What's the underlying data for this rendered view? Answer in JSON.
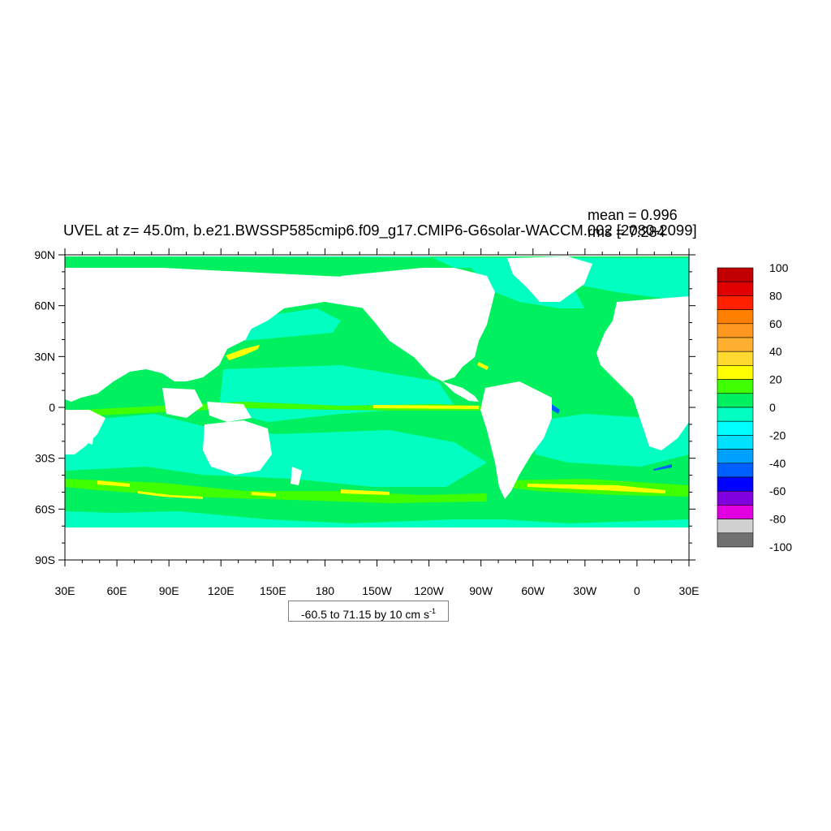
{
  "title": "UVEL at z=  45.0m, b.e21.BWSSP585cmip6.f09_g17.CMIP6-G6solar-WACCM.002 [2080-2099]",
  "stats": {
    "mean": "mean = 0.996",
    "rms": "rms = 7.284"
  },
  "contour_info": {
    "text": "-60.5 to 71.15 by 10 cm s",
    "unit_exp": "-1"
  },
  "axes": {
    "lat_ticks": [
      {
        "label": "90N",
        "value": 90
      },
      {
        "label": "60N",
        "value": 60
      },
      {
        "label": "30N",
        "value": 30
      },
      {
        "label": "0",
        "value": 0
      },
      {
        "label": "30S",
        "value": -30
      },
      {
        "label": "60S",
        "value": -60
      },
      {
        "label": "90S",
        "value": -90
      }
    ],
    "lon_ticks": [
      {
        "label": "30E",
        "value": 30
      },
      {
        "label": "60E",
        "value": 60
      },
      {
        "label": "90E",
        "value": 90
      },
      {
        "label": "120E",
        "value": 120
      },
      {
        "label": "150E",
        "value": 150
      },
      {
        "label": "180",
        "value": 180
      },
      {
        "label": "150W",
        "value": 210
      },
      {
        "label": "120W",
        "value": 240
      },
      {
        "label": "90W",
        "value": 270
      },
      {
        "label": "60W",
        "value": 300
      },
      {
        "label": "30W",
        "value": 330
      },
      {
        "label": "0",
        "value": 360
      },
      {
        "label": "30E",
        "value": 390
      }
    ],
    "lon_range": [
      30,
      390
    ],
    "lat_range": [
      -90,
      90
    ]
  },
  "colorbar": {
    "labels": [
      "100",
      "80",
      "60",
      "40",
      "20",
      "0",
      "-20",
      "-40",
      "-60",
      "-80",
      "-100"
    ],
    "colors": [
      "#c00000",
      "#e00000",
      "#ff2000",
      "#ff8000",
      "#ff9820",
      "#ffb030",
      "#ffd830",
      "#ffff00",
      "#40ff00",
      "#00f060",
      "#00ffc0",
      "#00ffff",
      "#00e0ff",
      "#00a0ff",
      "#0060ff",
      "#0000ff",
      "#8000e0",
      "#e000e0",
      "#d0d0d0",
      "#707070"
    ]
  },
  "chart_data": {
    "type": "heatmap",
    "variable": "UVEL",
    "units": "cm s-1",
    "depth": "45.0m",
    "case": "b.e21.BWSSP585cmip6.f09_g17.CMIP6-G6solar-WACCM.002",
    "period": "2080-2099",
    "mean": 0.996,
    "rms": 7.284,
    "contour_min": -60.5,
    "contour_max": 71.15,
    "contour_interval": 10,
    "colorbar_range": [
      -100,
      100
    ],
    "xlim": [
      30,
      390
    ],
    "ylim": [
      -90,
      90
    ]
  },
  "colors": {
    "ocean_base": "#00f060",
    "weak_neg": "#00ffc0",
    "land": "#ffffff"
  }
}
